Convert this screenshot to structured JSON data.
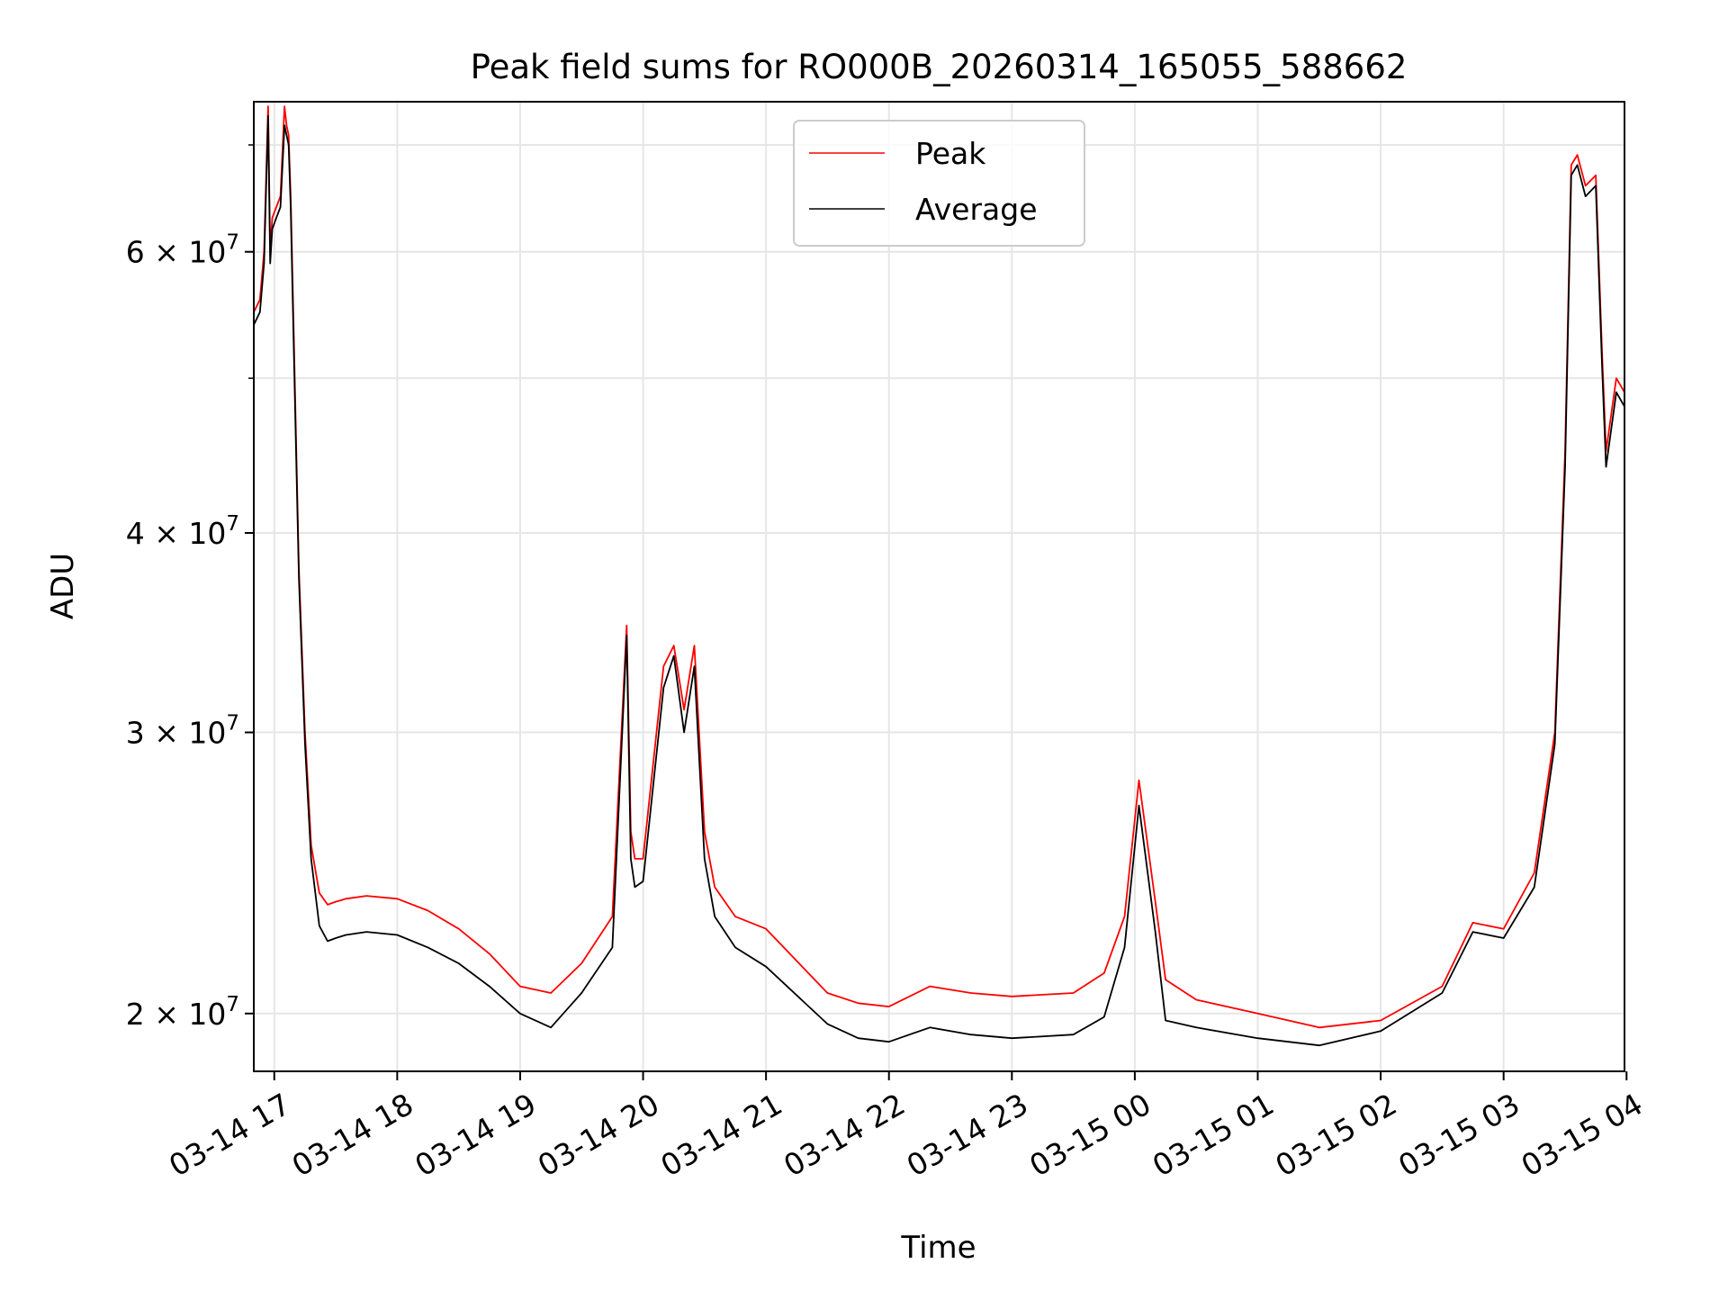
{
  "chart_data": {
    "type": "line",
    "title": "Peak field sums for RO000B_20260314_165055_588662",
    "xlabel": "Time",
    "ylabel": "ADU",
    "yscale": "log",
    "ylim": [
      18400000,
      74500000
    ],
    "xlim": [
      "2026-03-14 16:50",
      "2026-03-15 03:59"
    ],
    "grid": true,
    "legend_position": "upper center",
    "x_ticks": [
      "2026-03-14 17:00",
      "2026-03-14 18:00",
      "2026-03-14 19:00",
      "2026-03-14 20:00",
      "2026-03-14 21:00",
      "2026-03-14 22:00",
      "2026-03-14 23:00",
      "2026-03-15 00:00",
      "2026-03-15 01:00",
      "2026-03-15 02:00",
      "2026-03-15 03:00",
      "2026-03-15 04:00"
    ],
    "x_tick_labels": [
      "03-14 17",
      "03-14 18",
      "03-14 19",
      "03-14 20",
      "03-14 21",
      "03-14 22",
      "03-14 23",
      "03-15 00",
      "03-15 01",
      "03-15 02",
      "03-15 03",
      "03-15 04"
    ],
    "y_major_ticks": [
      20000000,
      30000000,
      40000000,
      60000000
    ],
    "y_major_labels": [
      "2 × 10^7",
      "3 × 10^7",
      "4 × 10^7",
      "6 × 10^7"
    ],
    "y_minor_ticks": [
      50000000,
      70000000
    ],
    "series": [
      {
        "name": "Peak",
        "color": "#ff0000",
        "x": [
          "2026-03-14 16:50",
          "2026-03-14 16:53",
          "2026-03-14 16:55",
          "2026-03-14 16:57",
          "2026-03-14 16:58",
          "2026-03-14 16:59",
          "2026-03-14 17:01",
          "2026-03-14 17:03",
          "2026-03-14 17:05",
          "2026-03-14 17:06",
          "2026-03-14 17:07",
          "2026-03-14 17:08",
          "2026-03-14 17:10",
          "2026-03-14 17:12",
          "2026-03-14 17:15",
          "2026-03-14 17:18",
          "2026-03-14 17:22",
          "2026-03-14 17:26",
          "2026-03-14 17:30",
          "2026-03-14 17:35",
          "2026-03-14 17:45",
          "2026-03-14 18:00",
          "2026-03-14 18:15",
          "2026-03-14 18:30",
          "2026-03-14 18:45",
          "2026-03-14 19:00",
          "2026-03-14 19:15",
          "2026-03-14 19:30",
          "2026-03-14 19:45",
          "2026-03-14 19:52",
          "2026-03-14 19:54",
          "2026-03-14 19:56",
          "2026-03-14 20:00",
          "2026-03-14 20:10",
          "2026-03-14 20:15",
          "2026-03-14 20:20",
          "2026-03-14 20:25",
          "2026-03-14 20:30",
          "2026-03-14 20:35",
          "2026-03-14 20:45",
          "2026-03-14 21:00",
          "2026-03-14 21:30",
          "2026-03-14 21:45",
          "2026-03-14 22:00",
          "2026-03-14 22:20",
          "2026-03-14 22:40",
          "2026-03-14 23:00",
          "2026-03-14 23:30",
          "2026-03-14 23:45",
          "2026-03-14 23:55",
          "2026-03-15 00:02",
          "2026-03-15 00:10",
          "2026-03-15 00:15",
          "2026-03-15 00:30",
          "2026-03-15 01:00",
          "2026-03-15 01:30",
          "2026-03-15 02:00",
          "2026-03-15 02:30",
          "2026-03-15 02:45",
          "2026-03-15 03:00",
          "2026-03-15 03:15",
          "2026-03-15 03:25",
          "2026-03-15 03:30",
          "2026-03-15 03:33",
          "2026-03-15 03:36",
          "2026-03-15 03:40",
          "2026-03-15 03:45",
          "2026-03-15 03:48",
          "2026-03-15 03:50",
          "2026-03-15 03:55",
          "2026-03-15 03:59"
        ],
        "values": [
          55000000,
          56000000,
          60000000,
          74000000,
          60000000,
          63000000,
          64000000,
          65000000,
          74000000,
          72000000,
          71000000,
          65000000,
          50000000,
          38000000,
          30000000,
          25500000,
          23800000,
          23400000,
          23500000,
          23600000,
          23700000,
          23600000,
          23200000,
          22600000,
          21800000,
          20800000,
          20600000,
          21500000,
          23000000,
          35000000,
          26000000,
          25000000,
          25000000,
          33000000,
          34000000,
          31000000,
          34000000,
          26000000,
          24000000,
          23000000,
          22600000,
          20600000,
          20300000,
          20200000,
          20800000,
          20600000,
          20500000,
          20600000,
          21200000,
          23000000,
          28000000,
          23500000,
          21000000,
          20400000,
          20000000,
          19600000,
          19800000,
          20800000,
          22800000,
          22600000,
          24500000,
          30000000,
          45000000,
          68000000,
          69000000,
          66000000,
          67000000,
          52000000,
          45000000,
          50000000,
          49000000
        ]
      },
      {
        "name": "Average",
        "color": "#000000",
        "x": [
          "2026-03-14 16:50",
          "2026-03-14 16:53",
          "2026-03-14 16:55",
          "2026-03-14 16:57",
          "2026-03-14 16:58",
          "2026-03-14 16:59",
          "2026-03-14 17:01",
          "2026-03-14 17:03",
          "2026-03-14 17:05",
          "2026-03-14 17:06",
          "2026-03-14 17:07",
          "2026-03-14 17:08",
          "2026-03-14 17:10",
          "2026-03-14 17:12",
          "2026-03-14 17:15",
          "2026-03-14 17:18",
          "2026-03-14 17:22",
          "2026-03-14 17:26",
          "2026-03-14 17:30",
          "2026-03-14 17:35",
          "2026-03-14 17:45",
          "2026-03-14 18:00",
          "2026-03-14 18:15",
          "2026-03-14 18:30",
          "2026-03-14 18:45",
          "2026-03-14 19:00",
          "2026-03-14 19:15",
          "2026-03-14 19:30",
          "2026-03-14 19:45",
          "2026-03-14 19:52",
          "2026-03-14 19:54",
          "2026-03-14 19:56",
          "2026-03-14 20:00",
          "2026-03-14 20:10",
          "2026-03-14 20:15",
          "2026-03-14 20:20",
          "2026-03-14 20:25",
          "2026-03-14 20:30",
          "2026-03-14 20:35",
          "2026-03-14 20:45",
          "2026-03-14 21:00",
          "2026-03-14 21:30",
          "2026-03-14 21:45",
          "2026-03-14 22:00",
          "2026-03-14 22:20",
          "2026-03-14 22:40",
          "2026-03-14 23:00",
          "2026-03-14 23:30",
          "2026-03-14 23:45",
          "2026-03-14 23:55",
          "2026-03-15 00:02",
          "2026-03-15 00:10",
          "2026-03-15 00:15",
          "2026-03-15 00:30",
          "2026-03-15 01:00",
          "2026-03-15 01:30",
          "2026-03-15 02:00",
          "2026-03-15 02:30",
          "2026-03-15 02:45",
          "2026-03-15 03:00",
          "2026-03-15 03:15",
          "2026-03-15 03:25",
          "2026-03-15 03:30",
          "2026-03-15 03:33",
          "2026-03-15 03:36",
          "2026-03-15 03:40",
          "2026-03-15 03:45",
          "2026-03-15 03:48",
          "2026-03-15 03:50",
          "2026-03-15 03:55",
          "2026-03-15 03:59"
        ],
        "values": [
          54000000,
          55000000,
          59000000,
          73000000,
          59000000,
          62000000,
          63000000,
          64000000,
          72000000,
          71000000,
          70000000,
          64000000,
          49000000,
          37500000,
          29500000,
          25000000,
          22700000,
          22200000,
          22300000,
          22400000,
          22500000,
          22400000,
          22000000,
          21500000,
          20800000,
          20000000,
          19600000,
          20600000,
          22000000,
          34500000,
          25000000,
          24000000,
          24200000,
          32000000,
          33500000,
          30000000,
          33000000,
          25000000,
          23000000,
          22000000,
          21400000,
          19700000,
          19300000,
          19200000,
          19600000,
          19400000,
          19300000,
          19400000,
          19900000,
          22000000,
          27000000,
          22500000,
          19800000,
          19600000,
          19300000,
          19100000,
          19500000,
          20600000,
          22500000,
          22300000,
          24000000,
          29500000,
          44000000,
          67000000,
          68000000,
          65000000,
          66000000,
          51000000,
          44000000,
          49000000,
          48000000
        ]
      }
    ]
  }
}
